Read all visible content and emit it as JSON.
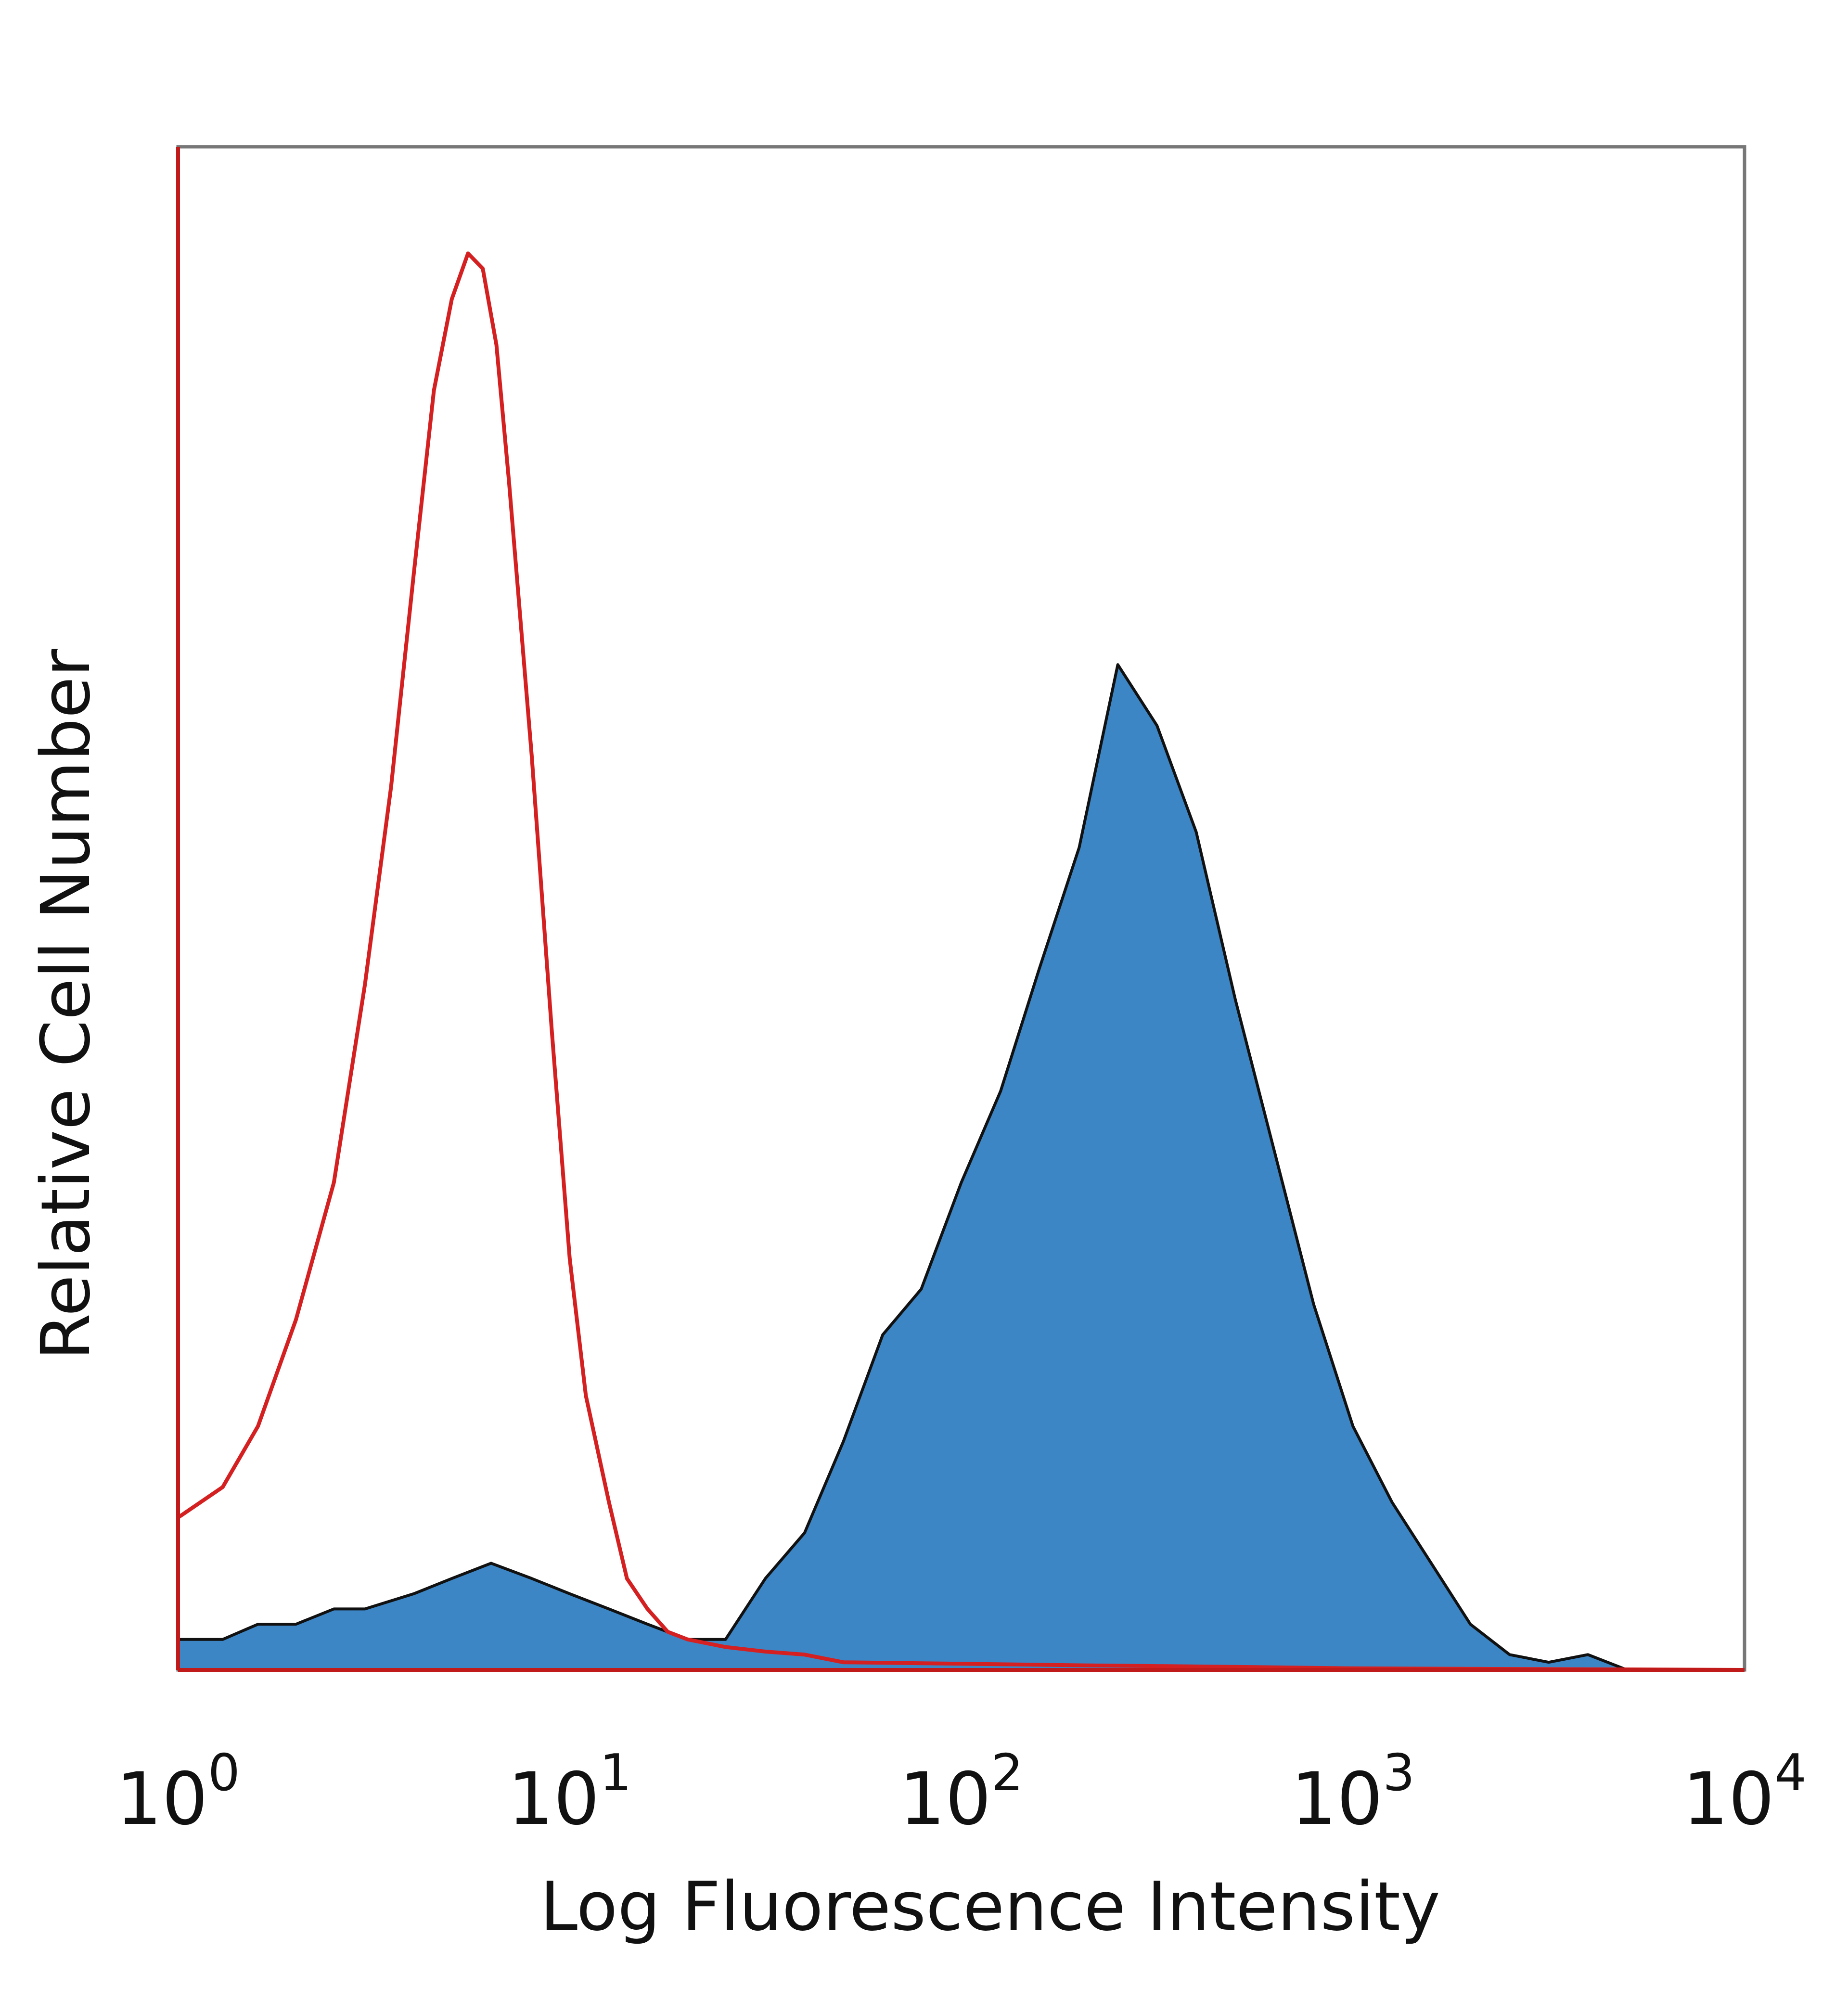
{
  "chart_data": {
    "type": "area",
    "title": "",
    "xlabel": "Log Fluorescence Intensity",
    "ylabel": "Relative Cell Number",
    "x_scale": "log",
    "xlim": [
      1,
      10000
    ],
    "ylim": [
      0,
      1
    ],
    "x_ticks": [
      {
        "base": "10",
        "exp": "0"
      },
      {
        "base": "10",
        "exp": "1"
      },
      {
        "base": "10",
        "exp": "2"
      },
      {
        "base": "10",
        "exp": "3"
      },
      {
        "base": "10",
        "exp": "4"
      }
    ],
    "grid": false,
    "legend": "none",
    "series": [
      {
        "style": "filled",
        "fill_color": "#3d86c6",
        "outline_color": "#111111",
        "x": [
          1,
          1.3,
          1.6,
          2,
          2.5,
          3,
          4,
          5,
          6.3,
          8,
          10,
          12.6,
          15.8,
          20,
          25,
          31.6,
          39.8,
          50,
          63,
          79,
          100,
          126,
          158,
          200,
          251,
          316,
          398,
          501,
          631,
          794,
          1000,
          1259,
          1585,
          1995,
          2512,
          3162,
          3981,
          5012,
          10000
        ],
        "y": [
          0.02,
          0.02,
          0.03,
          0.03,
          0.04,
          0.04,
          0.05,
          0.06,
          0.07,
          0.06,
          0.05,
          0.04,
          0.03,
          0.02,
          0.02,
          0.06,
          0.09,
          0.15,
          0.22,
          0.25,
          0.32,
          0.38,
          0.46,
          0.54,
          0.66,
          0.62,
          0.55,
          0.44,
          0.34,
          0.24,
          0.16,
          0.11,
          0.07,
          0.03,
          0.01,
          0.005,
          0.01,
          0,
          0
        ]
      },
      {
        "style": "outline",
        "color": "#d42020",
        "x": [
          1,
          1.3,
          1.6,
          2,
          2.5,
          3,
          3.5,
          4,
          4.5,
          5,
          5.5,
          6,
          6.5,
          7,
          8,
          9,
          10,
          11,
          12.6,
          14,
          15.8,
          17.8,
          20,
          25,
          31.6,
          39.8,
          50,
          100,
          200,
          500,
          1000,
          10000
        ],
        "y": [
          0.1,
          0.12,
          0.16,
          0.23,
          0.32,
          0.45,
          0.58,
          0.72,
          0.84,
          0.9,
          0.93,
          0.92,
          0.87,
          0.78,
          0.6,
          0.42,
          0.27,
          0.18,
          0.11,
          0.06,
          0.04,
          0.025,
          0.02,
          0.015,
          0.012,
          0.01,
          0.005,
          0.004,
          0.003,
          0.002,
          0.001,
          0
        ]
      }
    ]
  }
}
